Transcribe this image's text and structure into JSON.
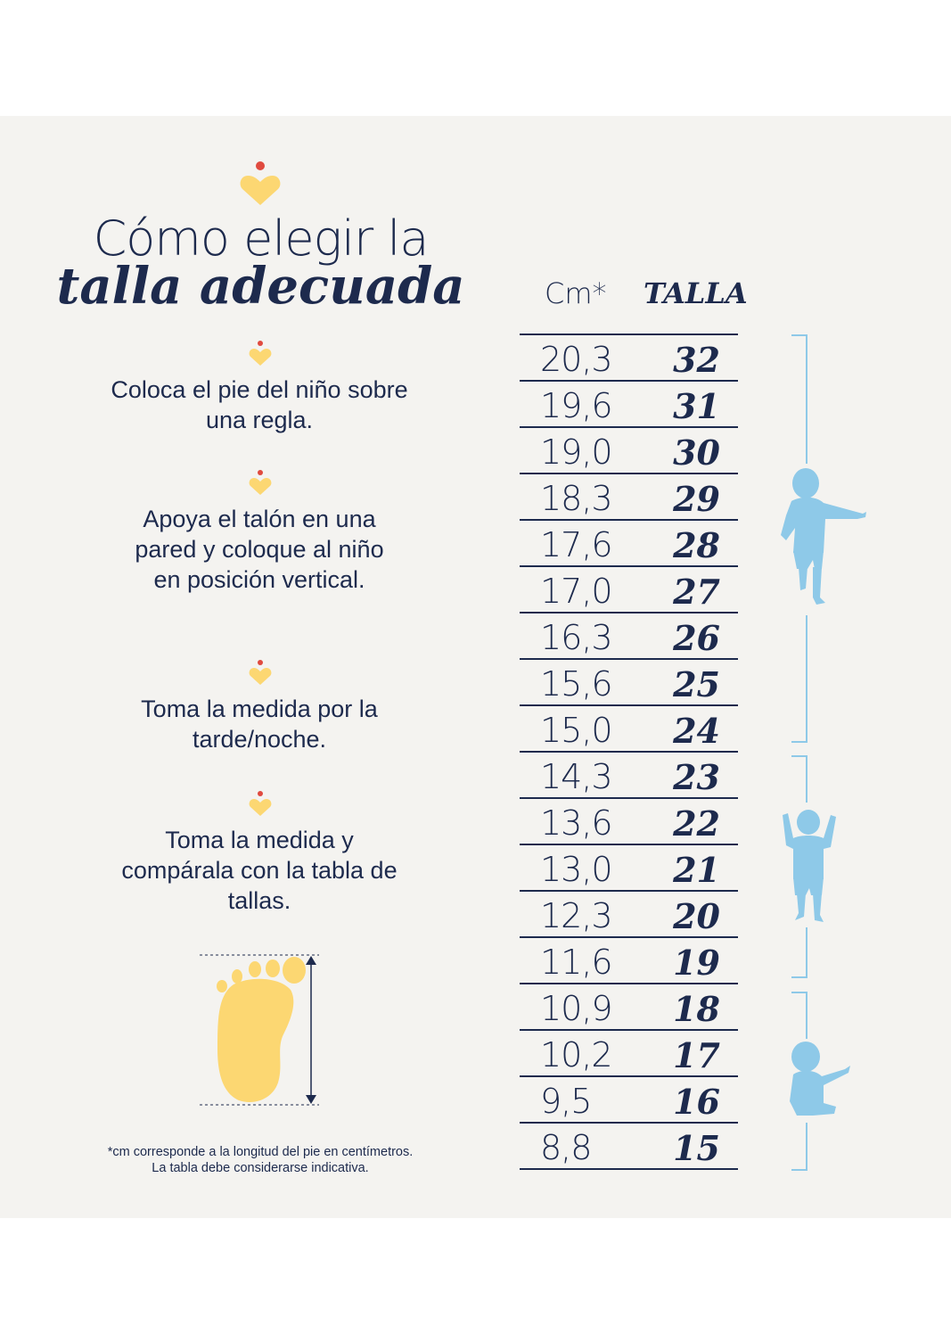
{
  "title": {
    "line1": "Cómo elegir la",
    "line2": "talla adecuada"
  },
  "steps": [
    {
      "text": "Coloca el pie del niño sobre una regla."
    },
    {
      "text": "Apoya el talón en una pared y coloque al niño en posición vertical."
    },
    {
      "text": "Toma la medida por la tarde/noche."
    },
    {
      "text": "Toma la medida y compárala con la tabla de tallas."
    }
  ],
  "footnote": {
    "line1": "*cm corresponde a la longitud del pie en centímetros.",
    "line2": "La tabla debe considerarse indicativa."
  },
  "table": {
    "header_cm": "Cm*",
    "header_size": "TALLA",
    "rows": [
      {
        "cm": "20,3",
        "size": "32"
      },
      {
        "cm": "19,6",
        "size": "31"
      },
      {
        "cm": "19,0",
        "size": "30"
      },
      {
        "cm": "18,3",
        "size": "29"
      },
      {
        "cm": "17,6",
        "size": "28"
      },
      {
        "cm": "17,0",
        "size": "27"
      },
      {
        "cm": "16,3",
        "size": "26"
      },
      {
        "cm": "15,6",
        "size": "25"
      },
      {
        "cm": "15,0",
        "size": "24"
      },
      {
        "cm": "14,3",
        "size": "23"
      },
      {
        "cm": "13,6",
        "size": "22"
      },
      {
        "cm": "13,0",
        "size": "21"
      },
      {
        "cm": "12,3",
        "size": "20"
      },
      {
        "cm": "11,6",
        "size": "19"
      },
      {
        "cm": "10,9",
        "size": "18"
      },
      {
        "cm": "10,2",
        "size": "17"
      },
      {
        "cm": "9,5",
        "size": "16"
      },
      {
        "cm": "8,8",
        "size": "15"
      }
    ]
  },
  "icons": {
    "logo": "heart-dot-icon",
    "step_marker": "heart-dot-icon",
    "foot": "footprint-icon",
    "groups": [
      "walking-child-icon",
      "toddler-icon",
      "sitting-baby-icon"
    ]
  },
  "colors": {
    "navy": "#1d2a4d",
    "yellow": "#fcd772",
    "red_dot": "#e04a3f",
    "light_blue": "#8ec9e8",
    "panel_bg": "#f4f3f0"
  }
}
